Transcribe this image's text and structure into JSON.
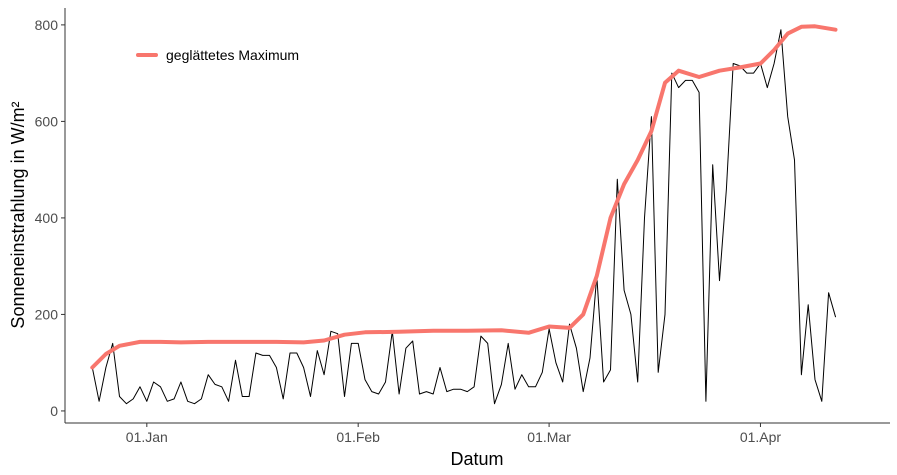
{
  "chart_data": {
    "type": "line",
    "xlabel": "Datum",
    "ylabel": "Sonneneinstrahlung in W/m²",
    "x_range": [
      "2018-12-20",
      "2019-04-20"
    ],
    "ylim": [
      -25,
      835
    ],
    "x_ticks": [
      {
        "date": "2019-01-01",
        "label": "01.Jan"
      },
      {
        "date": "2019-02-01",
        "label": "01.Feb"
      },
      {
        "date": "2019-03-01",
        "label": "01.Mar"
      },
      {
        "date": "2019-04-01",
        "label": "01.Apr"
      }
    ],
    "y_ticks": [
      {
        "value": 0,
        "label": "0"
      },
      {
        "value": 200,
        "label": "200"
      },
      {
        "value": 400,
        "label": "400"
      },
      {
        "value": 600,
        "label": "600"
      },
      {
        "value": 800,
        "label": "800"
      }
    ],
    "grid": false,
    "legend_position": "top-left",
    "series": [
      {
        "legend": "",
        "color": "#000000",
        "points": [
          [
            "2018-12-24",
            90
          ],
          [
            "2018-12-25",
            20
          ],
          [
            "2018-12-26",
            90
          ],
          [
            "2018-12-27",
            140
          ],
          [
            "2018-12-28",
            30
          ],
          [
            "2018-12-29",
            15
          ],
          [
            "2018-12-30",
            25
          ],
          [
            "2018-12-31",
            50
          ],
          [
            "2019-01-01",
            20
          ],
          [
            "2019-01-02",
            60
          ],
          [
            "2019-01-03",
            50
          ],
          [
            "2019-01-04",
            20
          ],
          [
            "2019-01-05",
            25
          ],
          [
            "2019-01-06",
            60
          ],
          [
            "2019-01-07",
            20
          ],
          [
            "2019-01-08",
            15
          ],
          [
            "2019-01-09",
            25
          ],
          [
            "2019-01-10",
            75
          ],
          [
            "2019-01-11",
            55
          ],
          [
            "2019-01-12",
            50
          ],
          [
            "2019-01-13",
            20
          ],
          [
            "2019-01-14",
            105
          ],
          [
            "2019-01-15",
            30
          ],
          [
            "2019-01-16",
            30
          ],
          [
            "2019-01-17",
            120
          ],
          [
            "2019-01-18",
            115
          ],
          [
            "2019-01-19",
            115
          ],
          [
            "2019-01-20",
            90
          ],
          [
            "2019-01-21",
            25
          ],
          [
            "2019-01-22",
            120
          ],
          [
            "2019-01-23",
            120
          ],
          [
            "2019-01-24",
            90
          ],
          [
            "2019-01-25",
            30
          ],
          [
            "2019-01-26",
            125
          ],
          [
            "2019-01-27",
            75
          ],
          [
            "2019-01-28",
            165
          ],
          [
            "2019-01-29",
            160
          ],
          [
            "2019-01-30",
            30
          ],
          [
            "2019-01-31",
            140
          ],
          [
            "2019-02-01",
            140
          ],
          [
            "2019-02-02",
            65
          ],
          [
            "2019-02-03",
            40
          ],
          [
            "2019-02-04",
            35
          ],
          [
            "2019-02-05",
            60
          ],
          [
            "2019-02-06",
            165
          ],
          [
            "2019-02-07",
            35
          ],
          [
            "2019-02-08",
            130
          ],
          [
            "2019-02-09",
            145
          ],
          [
            "2019-02-10",
            35
          ],
          [
            "2019-02-11",
            40
          ],
          [
            "2019-02-12",
            35
          ],
          [
            "2019-02-13",
            90
          ],
          [
            "2019-02-14",
            40
          ],
          [
            "2019-02-15",
            45
          ],
          [
            "2019-02-16",
            45
          ],
          [
            "2019-02-17",
            40
          ],
          [
            "2019-02-18",
            50
          ],
          [
            "2019-02-19",
            155
          ],
          [
            "2019-02-20",
            140
          ],
          [
            "2019-02-21",
            15
          ],
          [
            "2019-02-22",
            55
          ],
          [
            "2019-02-23",
            140
          ],
          [
            "2019-02-24",
            45
          ],
          [
            "2019-02-25",
            75
          ],
          [
            "2019-02-26",
            50
          ],
          [
            "2019-02-27",
            50
          ],
          [
            "2019-02-28",
            80
          ],
          [
            "2019-03-01",
            170
          ],
          [
            "2019-03-02",
            100
          ],
          [
            "2019-03-03",
            60
          ],
          [
            "2019-03-04",
            180
          ],
          [
            "2019-03-05",
            130
          ],
          [
            "2019-03-06",
            40
          ],
          [
            "2019-03-07",
            110
          ],
          [
            "2019-03-08",
            280
          ],
          [
            "2019-03-09",
            60
          ],
          [
            "2019-03-10",
            85
          ],
          [
            "2019-03-11",
            480
          ],
          [
            "2019-03-12",
            250
          ],
          [
            "2019-03-13",
            200
          ],
          [
            "2019-03-14",
            60
          ],
          [
            "2019-03-15",
            400
          ],
          [
            "2019-03-16",
            610
          ],
          [
            "2019-03-17",
            80
          ],
          [
            "2019-03-18",
            200
          ],
          [
            "2019-03-19",
            700
          ],
          [
            "2019-03-20",
            670
          ],
          [
            "2019-03-21",
            685
          ],
          [
            "2019-03-22",
            685
          ],
          [
            "2019-03-23",
            660
          ],
          [
            "2019-03-24",
            20
          ],
          [
            "2019-03-25",
            510
          ],
          [
            "2019-03-26",
            270
          ],
          [
            "2019-03-27",
            460
          ],
          [
            "2019-03-28",
            720
          ],
          [
            "2019-03-29",
            715
          ],
          [
            "2019-03-30",
            700
          ],
          [
            "2019-03-31",
            700
          ],
          [
            "2019-04-01",
            720
          ],
          [
            "2019-04-02",
            670
          ],
          [
            "2019-04-03",
            720
          ],
          [
            "2019-04-04",
            790
          ],
          [
            "2019-04-05",
            610
          ],
          [
            "2019-04-06",
            520
          ],
          [
            "2019-04-07",
            75
          ],
          [
            "2019-04-08",
            220
          ],
          [
            "2019-04-09",
            65
          ],
          [
            "2019-04-10",
            20
          ],
          [
            "2019-04-11",
            245
          ],
          [
            "2019-04-12",
            195
          ]
        ]
      },
      {
        "legend": "geglättetes Maximum",
        "color": "#F8766D",
        "points": [
          [
            "2018-12-24",
            90
          ],
          [
            "2018-12-26",
            118
          ],
          [
            "2018-12-28",
            135
          ],
          [
            "2018-12-31",
            143
          ],
          [
            "2019-01-03",
            143
          ],
          [
            "2019-01-06",
            142
          ],
          [
            "2019-01-10",
            143
          ],
          [
            "2019-01-15",
            143
          ],
          [
            "2019-01-20",
            143
          ],
          [
            "2019-01-24",
            142
          ],
          [
            "2019-01-27",
            146
          ],
          [
            "2019-01-30",
            158
          ],
          [
            "2019-02-02",
            163
          ],
          [
            "2019-02-07",
            164
          ],
          [
            "2019-02-12",
            166
          ],
          [
            "2019-02-17",
            166
          ],
          [
            "2019-02-22",
            167
          ],
          [
            "2019-02-26",
            162
          ],
          [
            "2019-03-01",
            175
          ],
          [
            "2019-03-04",
            172
          ],
          [
            "2019-03-06",
            200
          ],
          [
            "2019-03-08",
            280
          ],
          [
            "2019-03-10",
            400
          ],
          [
            "2019-03-12",
            470
          ],
          [
            "2019-03-14",
            520
          ],
          [
            "2019-03-16",
            580
          ],
          [
            "2019-03-18",
            680
          ],
          [
            "2019-03-20",
            705
          ],
          [
            "2019-03-23",
            692
          ],
          [
            "2019-03-26",
            705
          ],
          [
            "2019-03-29",
            712
          ],
          [
            "2019-04-01",
            720
          ],
          [
            "2019-04-03",
            748
          ],
          [
            "2019-04-05",
            782
          ],
          [
            "2019-04-07",
            796
          ],
          [
            "2019-04-09",
            797
          ],
          [
            "2019-04-12",
            790
          ]
        ]
      }
    ]
  }
}
